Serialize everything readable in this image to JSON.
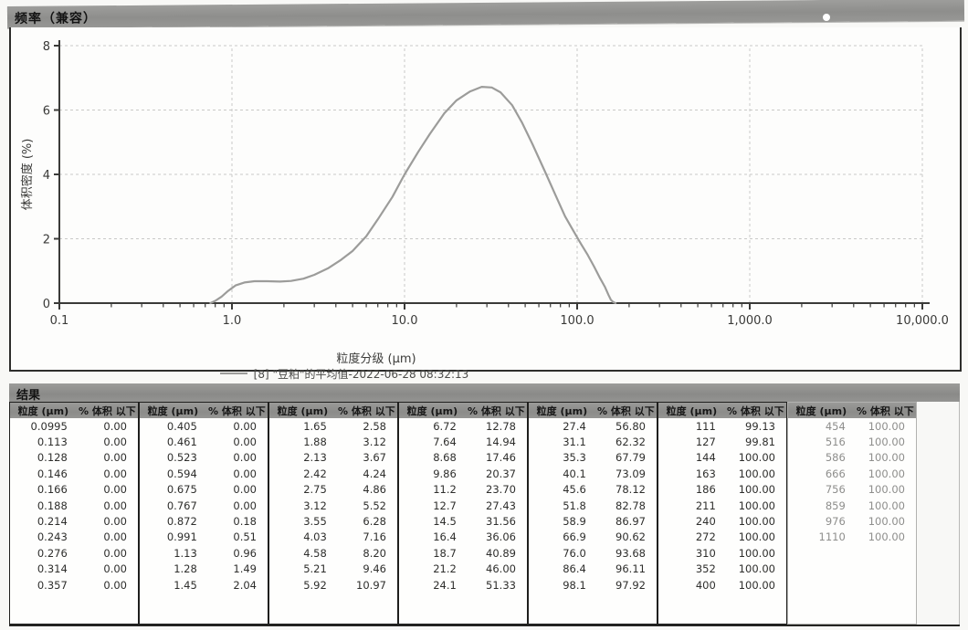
{
  "header": {
    "title": "频率（兼容）"
  },
  "chart_data": {
    "type": "line",
    "title": "频率（兼容）",
    "xlabel": "粒度分级 (µm)",
    "ylabel": "体积密度 (%)",
    "x_scale": "log",
    "xlim": [
      0.1,
      10000
    ],
    "ylim": [
      0,
      8
    ],
    "x_ticks": [
      0.1,
      1,
      10,
      100,
      1000,
      10000
    ],
    "x_tick_labels": [
      "0.1",
      "1.0",
      "10.0",
      "100.0",
      "1,000.0",
      "10,000.0"
    ],
    "y_ticks": [
      0,
      2,
      4,
      6,
      8
    ],
    "grid": true,
    "curve_color": "#9c9c9a",
    "legend": {
      "position": "bottom",
      "label": "[8] \"豆粕\"的平均值-2022-06-28 08:32:13"
    },
    "series": [
      {
        "name": "[8] \"豆粕\"的平均值-2022-06-28 08:32:13",
        "points": [
          [
            0.75,
            0
          ],
          [
            0.8,
            0.07
          ],
          [
            0.87,
            0.2
          ],
          [
            0.95,
            0.38
          ],
          [
            1.05,
            0.55
          ],
          [
            1.18,
            0.64
          ],
          [
            1.35,
            0.68
          ],
          [
            1.6,
            0.68
          ],
          [
            1.9,
            0.67
          ],
          [
            2.2,
            0.69
          ],
          [
            2.6,
            0.76
          ],
          [
            3.0,
            0.88
          ],
          [
            3.6,
            1.08
          ],
          [
            4.3,
            1.35
          ],
          [
            5.0,
            1.62
          ],
          [
            6.0,
            2.08
          ],
          [
            7.0,
            2.6
          ],
          [
            8.5,
            3.3
          ],
          [
            10,
            4.0
          ],
          [
            12,
            4.7
          ],
          [
            14,
            5.25
          ],
          [
            17,
            5.9
          ],
          [
            20,
            6.3
          ],
          [
            24,
            6.58
          ],
          [
            28,
            6.72
          ],
          [
            32,
            6.7
          ],
          [
            36,
            6.55
          ],
          [
            42,
            6.15
          ],
          [
            48,
            5.6
          ],
          [
            55,
            4.95
          ],
          [
            65,
            4.1
          ],
          [
            75,
            3.35
          ],
          [
            85,
            2.7
          ],
          [
            95,
            2.25
          ],
          [
            105,
            1.85
          ],
          [
            115,
            1.5
          ],
          [
            125,
            1.15
          ],
          [
            135,
            0.8
          ],
          [
            145,
            0.5
          ],
          [
            152,
            0.25
          ],
          [
            157,
            0.1
          ],
          [
            162,
            0.03
          ],
          [
            167,
            0
          ]
        ]
      }
    ]
  },
  "results": {
    "title": "结果",
    "col_headers": {
      "size": "粒度 (µm)",
      "pct": "% 体积 以下"
    },
    "groups": [
      {
        "rows": [
          [
            "0.0995",
            "0.00"
          ],
          [
            "0.113",
            "0.00"
          ],
          [
            "0.128",
            "0.00"
          ],
          [
            "0.146",
            "0.00"
          ],
          [
            "0.166",
            "0.00"
          ],
          [
            "0.188",
            "0.00"
          ],
          [
            "0.214",
            "0.00"
          ],
          [
            "0.243",
            "0.00"
          ],
          [
            "0.276",
            "0.00"
          ],
          [
            "0.314",
            "0.00"
          ],
          [
            "0.357",
            "0.00"
          ]
        ]
      },
      {
        "rows": [
          [
            "0.405",
            "0.00"
          ],
          [
            "0.461",
            "0.00"
          ],
          [
            "0.523",
            "0.00"
          ],
          [
            "0.594",
            "0.00"
          ],
          [
            "0.675",
            "0.00"
          ],
          [
            "0.767",
            "0.00"
          ],
          [
            "0.872",
            "0.18"
          ],
          [
            "0.991",
            "0.51"
          ],
          [
            "1.13",
            "0.96"
          ],
          [
            "1.28",
            "1.49"
          ],
          [
            "1.45",
            "2.04"
          ]
        ]
      },
      {
        "rows": [
          [
            "1.65",
            "2.58"
          ],
          [
            "1.88",
            "3.12"
          ],
          [
            "2.13",
            "3.67"
          ],
          [
            "2.42",
            "4.24"
          ],
          [
            "2.75",
            "4.86"
          ],
          [
            "3.12",
            "5.52"
          ],
          [
            "3.55",
            "6.28"
          ],
          [
            "4.03",
            "7.16"
          ],
          [
            "4.58",
            "8.20"
          ],
          [
            "5.21",
            "9.46"
          ],
          [
            "5.92",
            "10.97"
          ]
        ]
      },
      {
        "rows": [
          [
            "6.72",
            "12.78"
          ],
          [
            "7.64",
            "14.94"
          ],
          [
            "8.68",
            "17.46"
          ],
          [
            "9.86",
            "20.37"
          ],
          [
            "11.2",
            "23.70"
          ],
          [
            "12.7",
            "27.43"
          ],
          [
            "14.5",
            "31.56"
          ],
          [
            "16.4",
            "36.06"
          ],
          [
            "18.7",
            "40.89"
          ],
          [
            "21.2",
            "46.00"
          ],
          [
            "24.1",
            "51.33"
          ]
        ]
      },
      {
        "rows": [
          [
            "27.4",
            "56.80"
          ],
          [
            "31.1",
            "62.32"
          ],
          [
            "35.3",
            "67.79"
          ],
          [
            "40.1",
            "73.09"
          ],
          [
            "45.6",
            "78.12"
          ],
          [
            "51.8",
            "82.78"
          ],
          [
            "58.9",
            "86.97"
          ],
          [
            "66.9",
            "90.62"
          ],
          [
            "76.0",
            "93.68"
          ],
          [
            "86.4",
            "96.11"
          ],
          [
            "98.1",
            "97.92"
          ]
        ]
      },
      {
        "rows": [
          [
            "111",
            "99.13"
          ],
          [
            "127",
            "99.81"
          ],
          [
            "144",
            "100.00"
          ],
          [
            "163",
            "100.00"
          ],
          [
            "186",
            "100.00"
          ],
          [
            "211",
            "100.00"
          ],
          [
            "240",
            "100.00"
          ],
          [
            "272",
            "100.00"
          ],
          [
            "310",
            "100.00"
          ],
          [
            "352",
            "100.00"
          ],
          [
            "400",
            "100.00"
          ]
        ]
      },
      {
        "rows": [
          [
            "454",
            "100.00"
          ],
          [
            "516",
            "100.00"
          ],
          [
            "586",
            "100.00"
          ],
          [
            "666",
            "100.00"
          ],
          [
            "756",
            "100.00"
          ],
          [
            "859",
            "100.00"
          ],
          [
            "976",
            "100.00"
          ],
          [
            "1110",
            "100.00"
          ]
        ],
        "faint": true
      }
    ]
  }
}
